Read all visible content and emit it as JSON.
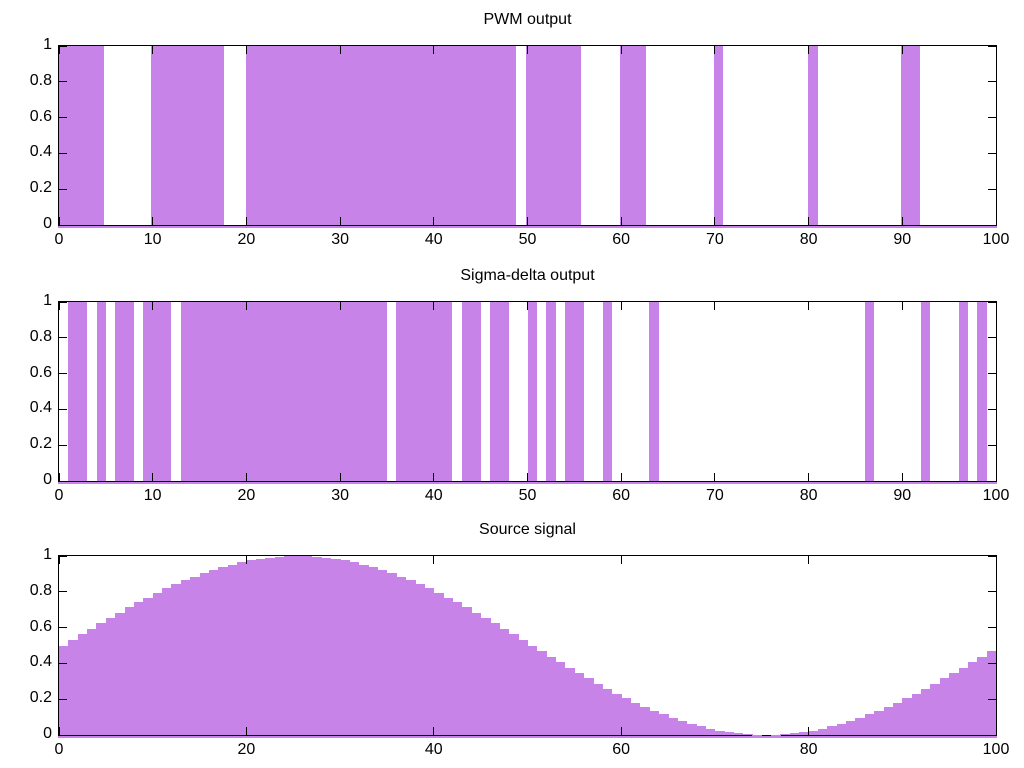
{
  "figure": {
    "background": "#ffffff",
    "axis_color": "#000000",
    "text_color": "#000000",
    "fill_color": "#c883e8"
  },
  "chart_data": [
    {
      "type": "bar",
      "subtype": "binary-interval-fill",
      "title": "PWM output",
      "xlabel": "",
      "ylabel": "",
      "xlim": [
        0,
        100
      ],
      "ylim": [
        0,
        1
      ],
      "grid": false,
      "legend": "none",
      "x_ticks": [
        0,
        10,
        20,
        30,
        40,
        50,
        60,
        70,
        80,
        90,
        100
      ],
      "x_tick_labels": [
        "0",
        "10",
        "20",
        "30",
        "40",
        "50",
        "60",
        "70",
        "80",
        "90",
        "100"
      ],
      "y_ticks": [
        0,
        0.2,
        0.4,
        0.6,
        0.8,
        1
      ],
      "y_tick_labels": [
        "0",
        "0.2",
        "0.4",
        "0.6",
        "0.8",
        "1"
      ],
      "on_intervals": [
        [
          0,
          4.8
        ],
        [
          9.8,
          17.6
        ],
        [
          19.9,
          48.8
        ],
        [
          49.8,
          55.7
        ],
        [
          59.9,
          62.7
        ],
        [
          69.9,
          70.9
        ],
        [
          79.9,
          81.0
        ],
        [
          89.9,
          91.9
        ]
      ],
      "value_when_on": 1,
      "value_when_off": 0
    },
    {
      "type": "bar",
      "subtype": "binary-interval-fill",
      "title": "Sigma-delta output",
      "xlabel": "",
      "ylabel": "",
      "xlim": [
        0,
        100
      ],
      "ylim": [
        0,
        1
      ],
      "grid": false,
      "legend": "none",
      "x_ticks": [
        0,
        10,
        20,
        30,
        40,
        50,
        60,
        70,
        80,
        90,
        100
      ],
      "x_tick_labels": [
        "0",
        "10",
        "20",
        "30",
        "40",
        "50",
        "60",
        "70",
        "80",
        "90",
        "100"
      ],
      "y_ticks": [
        0,
        0.2,
        0.4,
        0.6,
        0.8,
        1
      ],
      "y_tick_labels": [
        "0",
        "0.2",
        "0.4",
        "0.6",
        "0.8",
        "1"
      ],
      "on_intervals": [
        [
          1,
          3
        ],
        [
          4,
          5
        ],
        [
          6,
          8
        ],
        [
          9,
          12
        ],
        [
          13,
          35
        ],
        [
          36,
          42
        ],
        [
          43,
          45
        ],
        [
          46,
          48
        ],
        [
          50,
          51
        ],
        [
          52,
          53
        ],
        [
          54,
          56
        ],
        [
          58,
          59
        ],
        [
          63,
          64
        ],
        [
          86,
          87
        ],
        [
          92,
          93
        ],
        [
          96,
          97
        ],
        [
          98,
          99
        ]
      ],
      "value_when_on": 1,
      "value_when_off": 0
    },
    {
      "type": "area",
      "subtype": "step-fill",
      "title": "Source signal",
      "xlabel": "",
      "ylabel": "",
      "xlim": [
        0,
        100
      ],
      "ylim": [
        0,
        1
      ],
      "grid": false,
      "legend": "none",
      "x_ticks": [
        0,
        20,
        40,
        60,
        80,
        100
      ],
      "x_tick_labels": [
        "0",
        "20",
        "40",
        "60",
        "80",
        "100"
      ],
      "y_ticks": [
        0,
        0.2,
        0.4,
        0.6,
        0.8,
        1
      ],
      "y_tick_labels": [
        "0",
        "0.2",
        "0.4",
        "0.6",
        "0.8",
        "1"
      ],
      "step_width": 1,
      "x_start": 0,
      "values": [
        0.5,
        0.531,
        0.563,
        0.594,
        0.624,
        0.655,
        0.684,
        0.713,
        0.741,
        0.768,
        0.794,
        0.819,
        0.842,
        0.865,
        0.885,
        0.905,
        0.922,
        0.938,
        0.952,
        0.965,
        0.976,
        0.984,
        0.991,
        0.996,
        0.999,
        1.0,
        0.999,
        0.996,
        0.991,
        0.984,
        0.976,
        0.965,
        0.952,
        0.938,
        0.922,
        0.905,
        0.885,
        0.865,
        0.842,
        0.819,
        0.794,
        0.768,
        0.741,
        0.713,
        0.684,
        0.655,
        0.624,
        0.594,
        0.563,
        0.531,
        0.5,
        0.469,
        0.437,
        0.406,
        0.376,
        0.345,
        0.316,
        0.287,
        0.259,
        0.232,
        0.206,
        0.181,
        0.158,
        0.135,
        0.115,
        0.095,
        0.078,
        0.062,
        0.048,
        0.035,
        0.024,
        0.016,
        0.009,
        0.004,
        0.001,
        0.0,
        0.001,
        0.004,
        0.009,
        0.016,
        0.024,
        0.035,
        0.048,
        0.062,
        0.078,
        0.095,
        0.115,
        0.135,
        0.158,
        0.181,
        0.206,
        0.232,
        0.259,
        0.287,
        0.316,
        0.345,
        0.376,
        0.406,
        0.437,
        0.469
      ]
    }
  ]
}
